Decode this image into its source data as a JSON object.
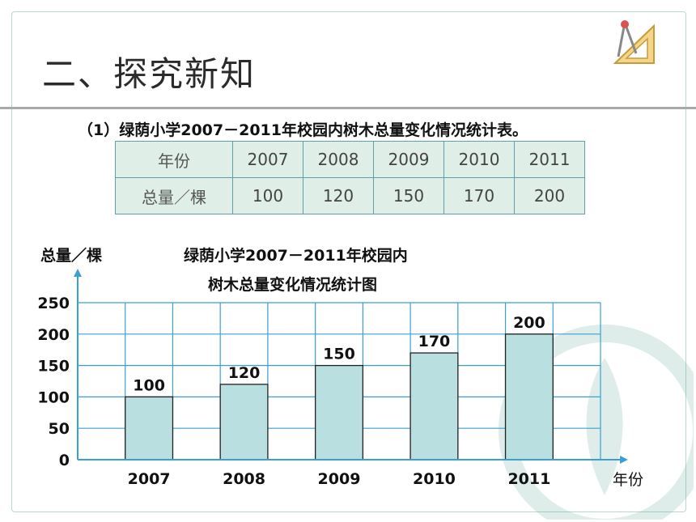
{
  "page": {
    "title": "二、探究新知",
    "subtitle": "（1）绿荫小学2007－2011年校园内树木总量变化情况统计表。"
  },
  "table": {
    "header_label": "年份",
    "value_label": "总量／棵",
    "years": [
      "2007",
      "2008",
      "2009",
      "2010",
      "2011"
    ],
    "values": [
      "100",
      "120",
      "150",
      "170",
      "200"
    ]
  },
  "chart_data": {
    "type": "bar",
    "title_line1": "绿荫小学2007－2011年校园内",
    "title_line2": "树木总量变化情况统计图",
    "ylabel": "总量／棵",
    "xlabel": "年份",
    "categories": [
      "2007",
      "2008",
      "2009",
      "2010",
      "2011"
    ],
    "values": [
      100,
      120,
      150,
      170,
      200
    ],
    "value_labels": [
      "100",
      "120",
      "150",
      "170",
      "200"
    ],
    "ylim": [
      0,
      250
    ],
    "yticks": [
      0,
      50,
      100,
      150,
      200,
      250
    ],
    "ytick_labels": [
      "0",
      "50",
      "100",
      "150",
      "200",
      "250"
    ],
    "grid": true,
    "bar_color": "#b9dfe0",
    "grid_color": "#3a9fd6"
  }
}
